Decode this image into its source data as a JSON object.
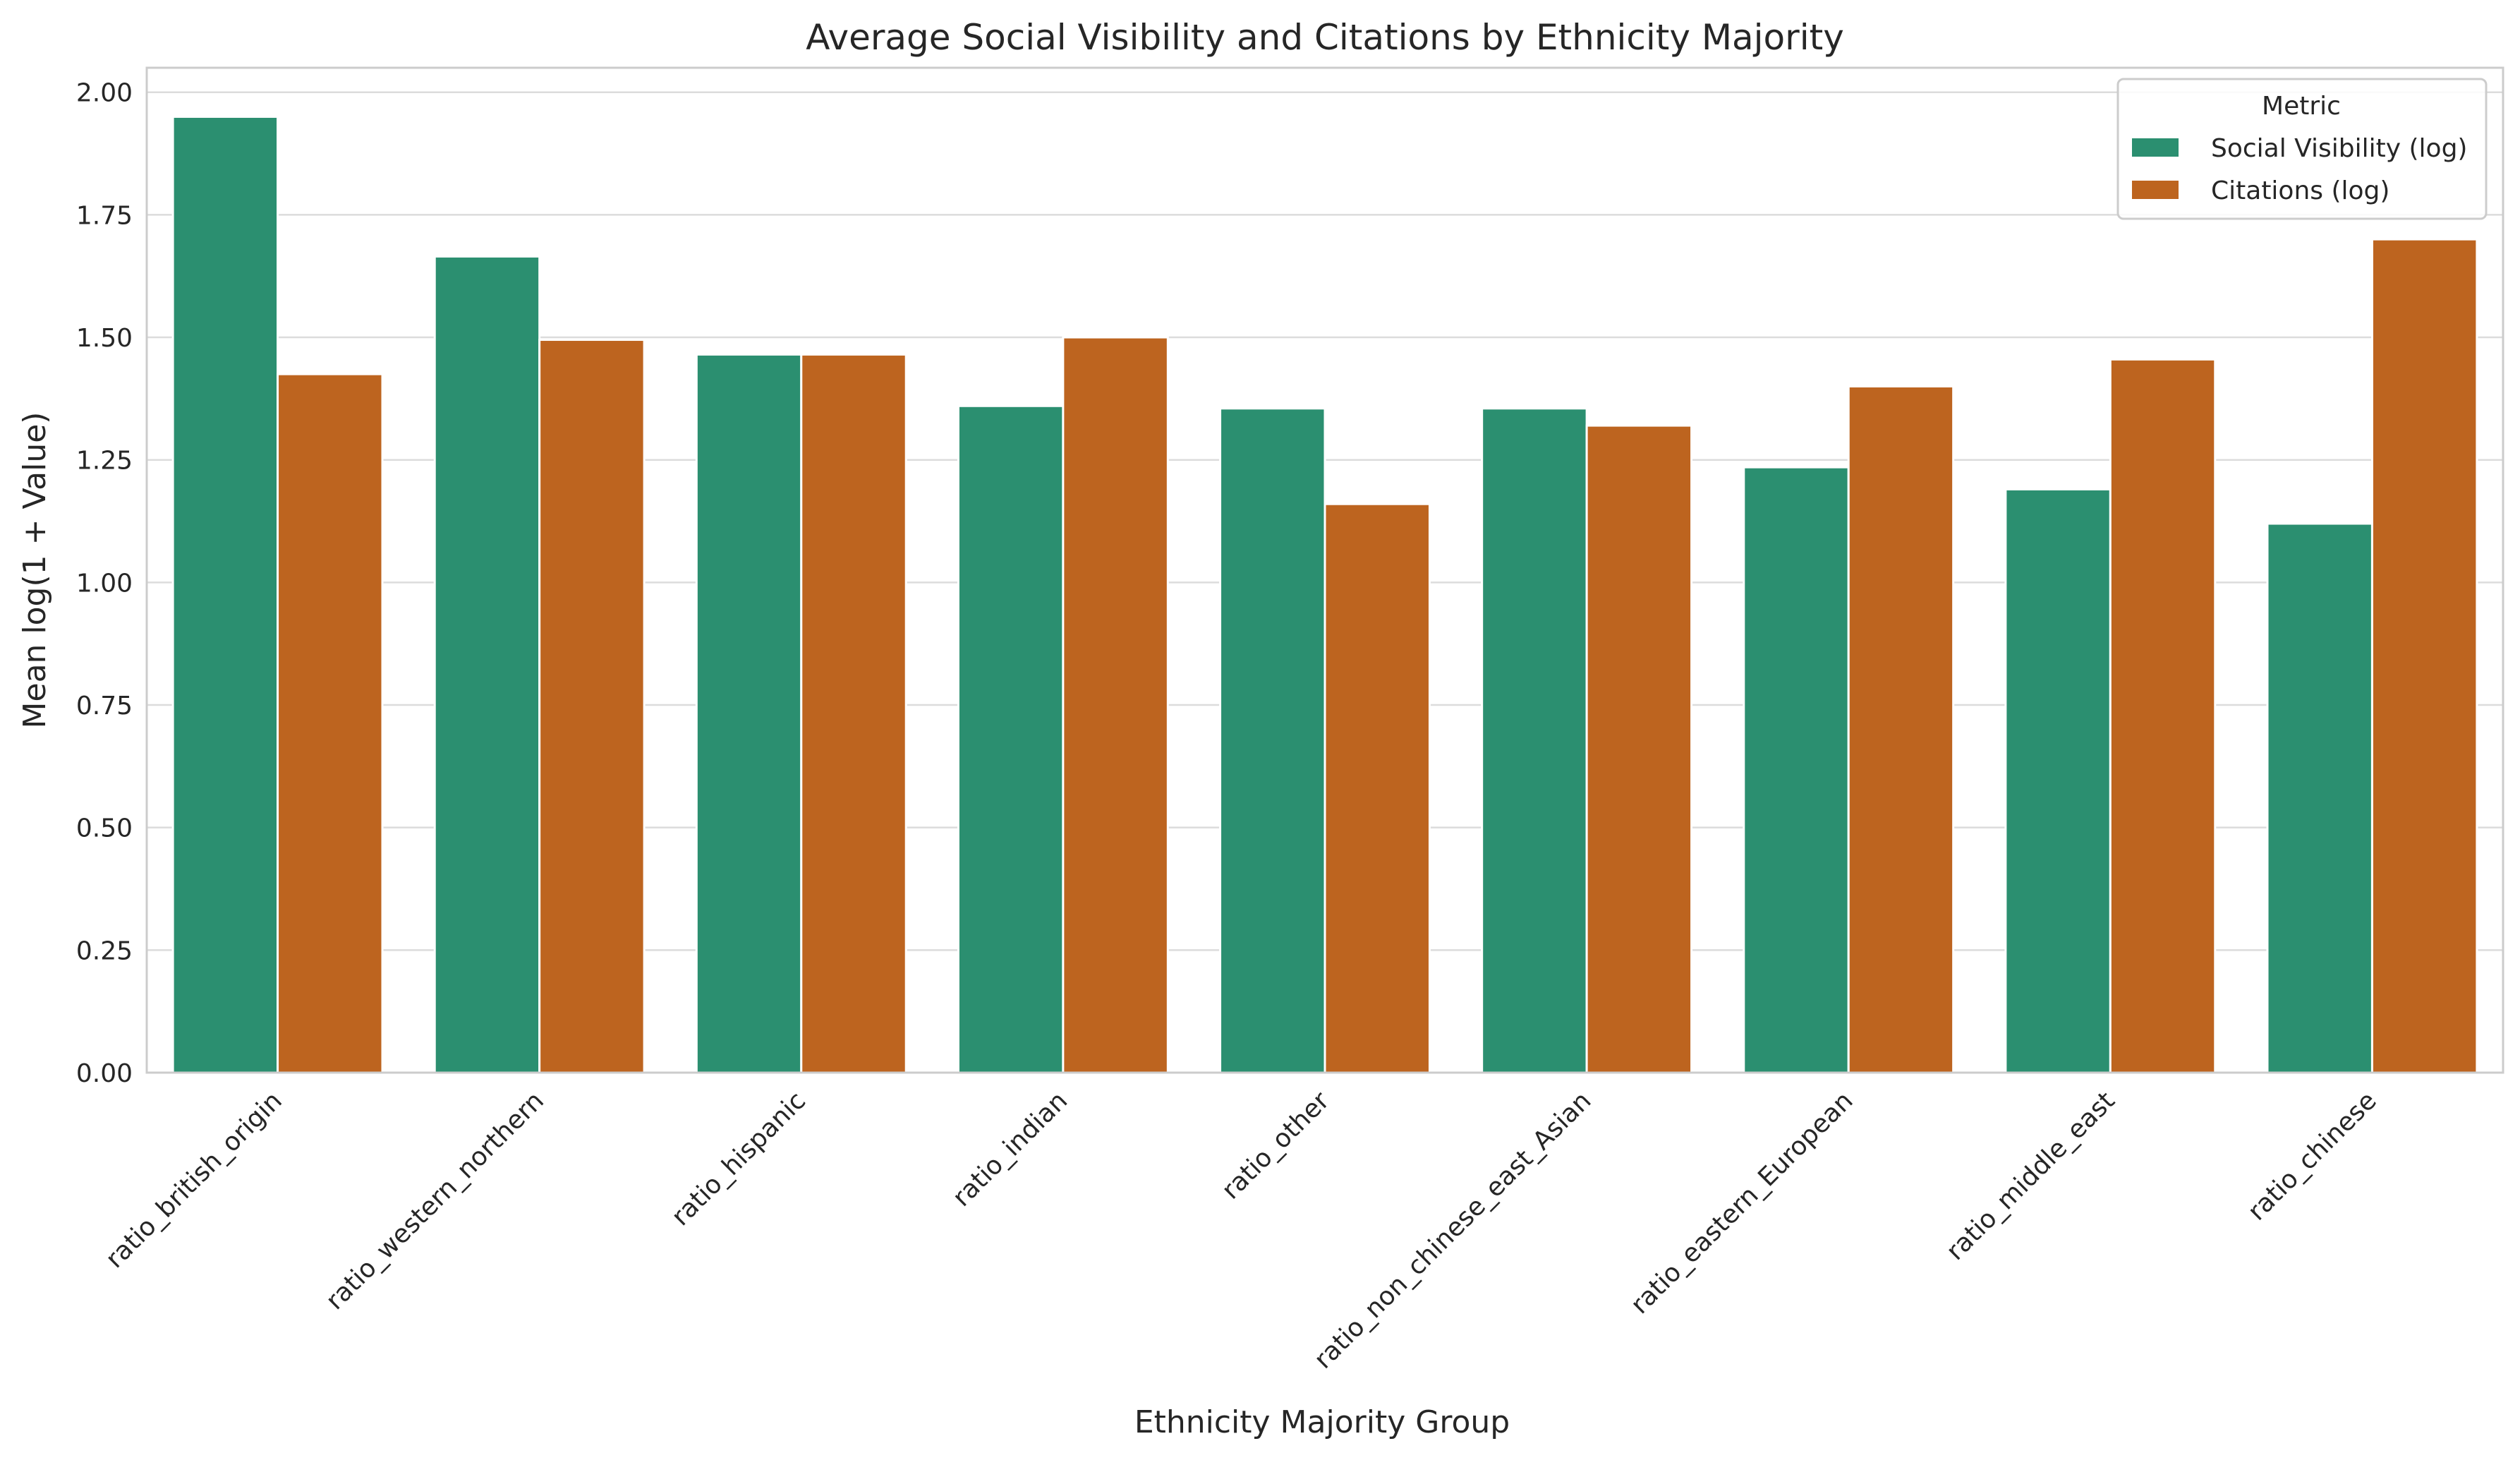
{
  "chart_data": {
    "type": "bar",
    "title": "Average Social Visibility and Citations by Ethnicity Majority",
    "xlabel": "Ethnicity Majority Group",
    "ylabel": "Mean log(1 + Value)",
    "ylim": [
      0,
      2.05
    ],
    "yticks": [
      "0.00",
      "0.25",
      "0.50",
      "0.75",
      "1.00",
      "1.25",
      "1.50",
      "1.75",
      "2.00"
    ],
    "grid": "horizontal",
    "legend_position": "top-right",
    "legend_title": "Metric",
    "categories": [
      "ratio_british_origin",
      "ratio_western_northern",
      "ratio_hispanic",
      "ratio_indian",
      "ratio_other",
      "ratio_non_chinese_east_Asian",
      "ratio_eastern_European",
      "ratio_middle_east",
      "ratio_chinese"
    ],
    "series": [
      {
        "name": "Social Visibility (log)",
        "color": "#2b8f70",
        "values": [
          1.95,
          1.665,
          1.465,
          1.36,
          1.355,
          1.355,
          1.235,
          1.19,
          1.12
        ]
      },
      {
        "name": "Citations (log)",
        "color": "#bd641f",
        "values": [
          1.425,
          1.495,
          1.465,
          1.5,
          1.16,
          1.32,
          1.4,
          1.455,
          1.7
        ]
      }
    ]
  }
}
